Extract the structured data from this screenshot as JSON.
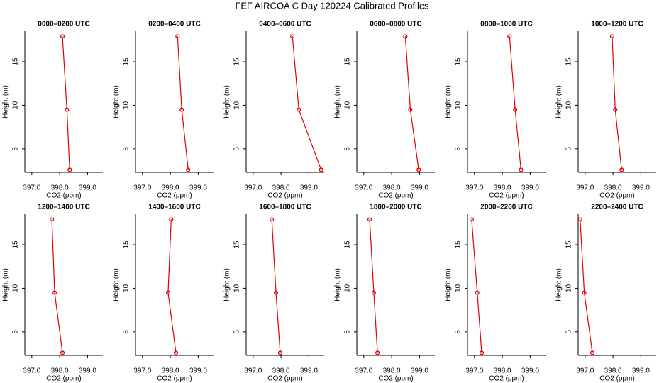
{
  "title": "FEF AIRCOA C  Day 120224  Calibrated Profiles",
  "chart_data": [
    {
      "type": "line",
      "title": "0000–0200 UTC",
      "xlabel": "CO2 (ppm)",
      "ylabel": "Height (m)",
      "color": "#e00000",
      "x": [
        398.36,
        398.26,
        398.1
      ],
      "values": [
        2.6,
        9.5,
        17.9
      ],
      "xlim": [
        396.75,
        399.55
      ],
      "ylim": [
        2.3,
        18.5
      ],
      "xticks": [
        {
          "value": 397,
          "label": "397.0"
        },
        {
          "value": 398,
          "label": "398.0"
        },
        {
          "value": 399,
          "label": "399.0"
        }
      ],
      "yticks": [
        5,
        10,
        15
      ]
    },
    {
      "type": "line",
      "title": "0200–0400 UTC",
      "xlabel": "CO2 (ppm)",
      "ylabel": "Height (m)",
      "color": "#e00000",
      "x": [
        398.64,
        398.41,
        398.26
      ],
      "values": [
        2.6,
        9.5,
        17.9
      ],
      "xlim": [
        396.75,
        399.55
      ],
      "ylim": [
        2.3,
        18.5
      ],
      "xticks": [
        {
          "value": 397,
          "label": "397.0"
        },
        {
          "value": 398,
          "label": "398.0"
        },
        {
          "value": 399,
          "label": "399.0"
        }
      ],
      "yticks": [
        5,
        10,
        15
      ]
    },
    {
      "type": "line",
      "title": "0400–0600 UTC",
      "xlabel": "CO2 (ppm)",
      "ylabel": "Height (m)",
      "color": "#e00000",
      "x": [
        399.44,
        398.64,
        398.41
      ],
      "values": [
        2.6,
        9.5,
        17.9
      ],
      "xlim": [
        396.75,
        399.55
      ],
      "ylim": [
        2.3,
        18.5
      ],
      "xticks": [
        {
          "value": 397,
          "label": "397.0"
        },
        {
          "value": 398,
          "label": "398.0"
        },
        {
          "value": 399,
          "label": "399.0"
        }
      ],
      "yticks": [
        5,
        10,
        15
      ]
    },
    {
      "type": "line",
      "title": "0600–0800 UTC",
      "xlabel": "CO2 (ppm)",
      "ylabel": "Height (m)",
      "color": "#e00000",
      "x": [
        398.97,
        398.67,
        398.49
      ],
      "values": [
        2.6,
        9.5,
        17.9
      ],
      "xlim": [
        396.75,
        399.55
      ],
      "ylim": [
        2.3,
        18.5
      ],
      "xticks": [
        {
          "value": 397,
          "label": "397.0"
        },
        {
          "value": 398,
          "label": "398.0"
        },
        {
          "value": 399,
          "label": "399.0"
        }
      ],
      "yticks": [
        5,
        10,
        15
      ]
    },
    {
      "type": "line",
      "title": "0800–1000 UTC",
      "xlabel": "CO2 (ppm)",
      "ylabel": "Height (m)",
      "color": "#e00000",
      "x": [
        398.67,
        398.46,
        398.26
      ],
      "values": [
        2.6,
        9.5,
        17.9
      ],
      "xlim": [
        396.75,
        399.55
      ],
      "ylim": [
        2.3,
        18.5
      ],
      "xticks": [
        {
          "value": 397,
          "label": "397.0"
        },
        {
          "value": 398,
          "label": "398.0"
        },
        {
          "value": 399,
          "label": "399.0"
        }
      ],
      "yticks": [
        5,
        10,
        15
      ]
    },
    {
      "type": "line",
      "title": "1000–1200 UTC",
      "xlabel": "CO2 (ppm)",
      "ylabel": "Height (m)",
      "color": "#e00000",
      "x": [
        398.31,
        398.08,
        397.97
      ],
      "values": [
        2.6,
        9.5,
        17.9
      ],
      "xlim": [
        396.75,
        399.55
      ],
      "ylim": [
        2.3,
        18.5
      ],
      "xticks": [
        {
          "value": 397,
          "label": "397.0"
        },
        {
          "value": 398,
          "label": "398.0"
        },
        {
          "value": 399,
          "label": "399.0"
        }
      ],
      "yticks": [
        5,
        10,
        15
      ]
    },
    {
      "type": "line",
      "title": "1200–1400 UTC",
      "xlabel": "CO2 (ppm)",
      "ylabel": "Height (m)",
      "color": "#e00000",
      "x": [
        398.1,
        397.82,
        397.72
      ],
      "values": [
        2.6,
        9.5,
        17.9
      ],
      "xlim": [
        396.75,
        399.55
      ],
      "ylim": [
        2.3,
        18.5
      ],
      "xticks": [
        {
          "value": 397,
          "label": "397.0"
        },
        {
          "value": 398,
          "label": "398.0"
        },
        {
          "value": 399,
          "label": "399.0"
        }
      ],
      "yticks": [
        5,
        10,
        15
      ]
    },
    {
      "type": "line",
      "title": "1400–1600 UTC",
      "xlabel": "CO2 (ppm)",
      "ylabel": "Height (m)",
      "color": "#e00000",
      "x": [
        398.2,
        397.92,
        398.03
      ],
      "values": [
        2.6,
        9.5,
        17.9
      ],
      "xlim": [
        396.75,
        399.55
      ],
      "ylim": [
        2.3,
        18.5
      ],
      "xticks": [
        {
          "value": 397,
          "label": "397.0"
        },
        {
          "value": 398,
          "label": "398.0"
        },
        {
          "value": 399,
          "label": "399.0"
        }
      ],
      "yticks": [
        5,
        10,
        15
      ]
    },
    {
      "type": "line",
      "title": "1600–1800 UTC",
      "xlabel": "CO2 (ppm)",
      "ylabel": "Height (m)",
      "color": "#e00000",
      "x": [
        397.97,
        397.82,
        397.67
      ],
      "values": [
        2.6,
        9.5,
        17.9
      ],
      "xlim": [
        396.75,
        399.55
      ],
      "ylim": [
        2.3,
        18.5
      ],
      "xticks": [
        {
          "value": 397,
          "label": "397.0"
        },
        {
          "value": 398,
          "label": "398.0"
        },
        {
          "value": 399,
          "label": "399.0"
        }
      ],
      "yticks": [
        5,
        10,
        15
      ]
    },
    {
      "type": "line",
      "title": "1800–2000 UTC",
      "xlabel": "CO2 (ppm)",
      "ylabel": "Height (m)",
      "color": "#e00000",
      "x": [
        397.49,
        397.36,
        397.21
      ],
      "values": [
        2.6,
        9.5,
        17.9
      ],
      "xlim": [
        396.75,
        399.55
      ],
      "ylim": [
        2.3,
        18.5
      ],
      "xticks": [
        {
          "value": 397,
          "label": "397.0"
        },
        {
          "value": 398,
          "label": "398.0"
        },
        {
          "value": 399,
          "label": "399.0"
        }
      ],
      "yticks": [
        5,
        10,
        15
      ]
    },
    {
      "type": "line",
      "title": "2000–2200 UTC",
      "xlabel": "CO2 (ppm)",
      "ylabel": "Height (m)",
      "color": "#e00000",
      "x": [
        397.26,
        397.1,
        396.9
      ],
      "values": [
        2.6,
        9.5,
        17.9
      ],
      "xlim": [
        396.75,
        399.55
      ],
      "ylim": [
        2.3,
        18.5
      ],
      "xticks": [
        {
          "value": 397,
          "label": "397.0"
        },
        {
          "value": 398,
          "label": "398.0"
        },
        {
          "value": 399,
          "label": "399.0"
        }
      ],
      "yticks": [
        5,
        10,
        15
      ]
    },
    {
      "type": "line",
      "title": "2200–2400 UTC",
      "xlabel": "CO2 (ppm)",
      "ylabel": "Height (m)",
      "color": "#e00000",
      "x": [
        397.26,
        396.97,
        396.82
      ],
      "values": [
        2.6,
        9.5,
        17.9
      ],
      "xlim": [
        396.75,
        399.55
      ],
      "ylim": [
        2.3,
        18.5
      ],
      "xticks": [
        {
          "value": 397,
          "label": "397.0"
        },
        {
          "value": 398,
          "label": "398.0"
        },
        {
          "value": 399,
          "label": "399.0"
        }
      ],
      "yticks": [
        5,
        10,
        15
      ]
    }
  ]
}
